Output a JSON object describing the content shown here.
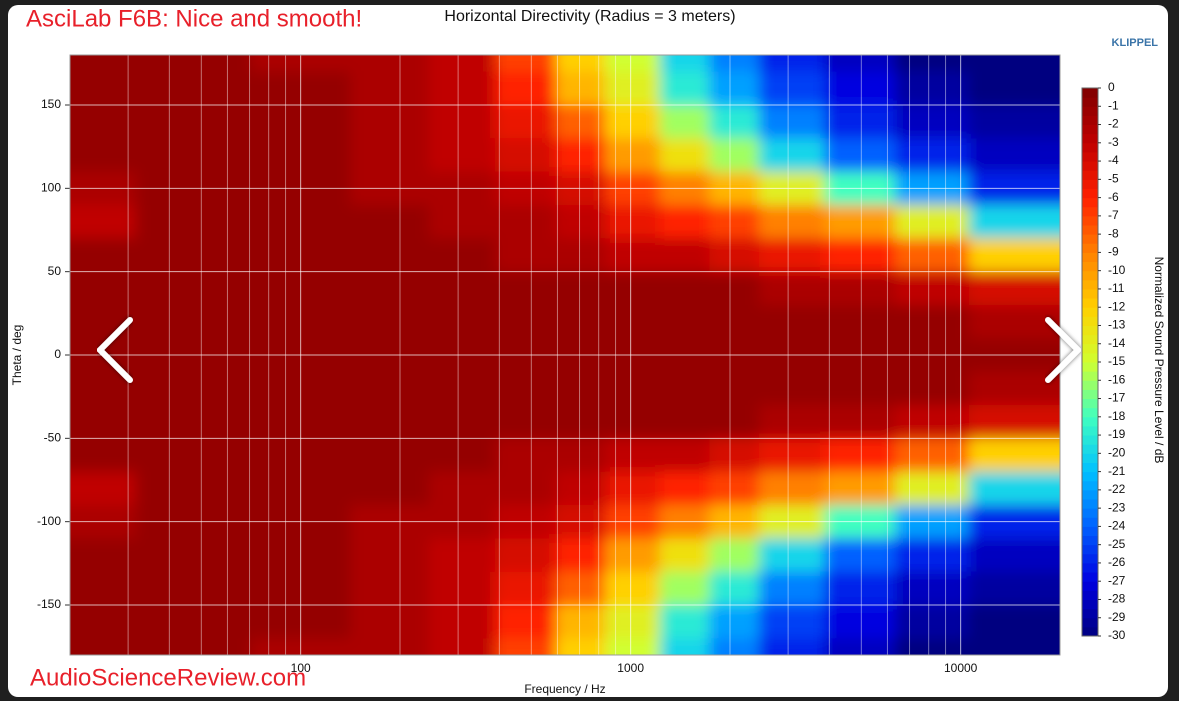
{
  "chart_data": {
    "type": "heatmap",
    "title": "Horizontal Directivity (Radius = 3 meters)",
    "overlay_title": "AsciLab F6B: Nice and smooth!",
    "watermark": "AudioScienceReview.com",
    "brand": "KLIPPEL",
    "xlabel": "Frequency / Hz",
    "ylabel": "Theta / deg",
    "colorbar_label": "Normalized Sound Pressure Level / dB",
    "xscale": "log",
    "xlim": [
      20,
      20000
    ],
    "xticks": [
      100,
      1000,
      10000
    ],
    "xminorticks": [
      30,
      40,
      50,
      60,
      70,
      80,
      90,
      200,
      300,
      400,
      500,
      600,
      700,
      800,
      900,
      2000,
      3000,
      4000,
      5000,
      6000,
      7000,
      8000,
      9000
    ],
    "ylim": [
      -180,
      180
    ],
    "yticks": [
      -150,
      -100,
      -50,
      0,
      50,
      100,
      150
    ],
    "grid": true,
    "clim": [
      -30,
      0
    ],
    "cticks": [
      0,
      -1,
      -2,
      -3,
      -4,
      -5,
      -6,
      -7,
      -8,
      -9,
      -10,
      -11,
      -12,
      -13,
      -14,
      -15,
      -16,
      -17,
      -18,
      -19,
      -20,
      -21,
      -22,
      -23,
      -24,
      -25,
      -26,
      -27,
      -28,
      -29,
      -30
    ],
    "colormap": [
      "#800000",
      "#c00000",
      "#ff2000",
      "#ff8000",
      "#ffd000",
      "#d0ff30",
      "#40ffc0",
      "#00c0ff",
      "#0060ff",
      "#0000e0",
      "#000080"
    ],
    "x": [
      20,
      50,
      100,
      200,
      300,
      500,
      700,
      1000,
      1500,
      2000,
      3000,
      5000,
      8000,
      14000
    ],
    "y": [
      180,
      160,
      140,
      120,
      100,
      80,
      60,
      40,
      20,
      0,
      -20,
      -40,
      -60,
      -80,
      -100,
      -120,
      -140,
      -160,
      -180
    ],
    "z": [
      [
        -1,
        -1,
        -2,
        -2,
        -3,
        -7,
        -12,
        -15,
        -20,
        -23,
        -26,
        -28,
        -30,
        -30
      ],
      [
        -1,
        -1,
        -1,
        -2,
        -3,
        -6,
        -11,
        -14,
        -19,
        -22,
        -25,
        -27,
        -29,
        -30
      ],
      [
        -1,
        -1,
        -1,
        -2,
        -3,
        -5,
        -8,
        -12,
        -16,
        -19,
        -23,
        -26,
        -28,
        -29
      ],
      [
        -1,
        -1,
        -1,
        -2,
        -3,
        -4,
        -6,
        -10,
        -13,
        -16,
        -20,
        -24,
        -26,
        -28
      ],
      [
        -2,
        -1,
        -1,
        -2,
        -2,
        -3,
        -4,
        -7,
        -9,
        -11,
        -14,
        -18,
        -22,
        -26
      ],
      [
        -3,
        -1,
        -1,
        -1,
        -2,
        -2,
        -3,
        -5,
        -6,
        -7,
        -9,
        -10,
        -14,
        -20
      ],
      [
        -1,
        -1,
        -1,
        -1,
        -1,
        -2,
        -2,
        -3,
        -3,
        -4,
        -5,
        -6,
        -8,
        -12
      ],
      [
        -1,
        -1,
        -1,
        -1,
        -1,
        -1,
        -1,
        -1,
        -1,
        -1,
        -2,
        -2,
        -3,
        -4
      ],
      [
        -1,
        -1,
        -1,
        -1,
        -1,
        -1,
        -1,
        -1,
        -1,
        -1,
        -1,
        -1,
        -1,
        -2
      ],
      [
        -1,
        -1,
        -1,
        -1,
        -1,
        -1,
        -1,
        -1,
        -1,
        -1,
        -1,
        -1,
        -1,
        -1
      ],
      [
        -1,
        -1,
        -1,
        -1,
        -1,
        -1,
        -1,
        -1,
        -1,
        -1,
        -1,
        -1,
        -1,
        -2
      ],
      [
        -1,
        -1,
        -1,
        -1,
        -1,
        -1,
        -1,
        -1,
        -1,
        -1,
        -2,
        -2,
        -3,
        -4
      ],
      [
        -1,
        -1,
        -1,
        -1,
        -1,
        -2,
        -2,
        -3,
        -3,
        -4,
        -5,
        -6,
        -8,
        -12
      ],
      [
        -3,
        -1,
        -1,
        -1,
        -2,
        -2,
        -3,
        -5,
        -6,
        -7,
        -9,
        -10,
        -14,
        -20
      ],
      [
        -2,
        -1,
        -1,
        -2,
        -2,
        -3,
        -4,
        -7,
        -9,
        -11,
        -14,
        -18,
        -22,
        -26
      ],
      [
        -1,
        -1,
        -1,
        -2,
        -3,
        -4,
        -6,
        -10,
        -13,
        -16,
        -20,
        -24,
        -26,
        -28
      ],
      [
        -1,
        -1,
        -1,
        -2,
        -3,
        -5,
        -8,
        -12,
        -16,
        -19,
        -23,
        -26,
        -28,
        -29
      ],
      [
        -1,
        -1,
        -1,
        -2,
        -3,
        -6,
        -11,
        -14,
        -19,
        -22,
        -25,
        -27,
        -29,
        -30
      ],
      [
        -1,
        -1,
        -2,
        -2,
        -3,
        -7,
        -12,
        -15,
        -20,
        -23,
        -26,
        -28,
        -30,
        -30
      ]
    ]
  }
}
